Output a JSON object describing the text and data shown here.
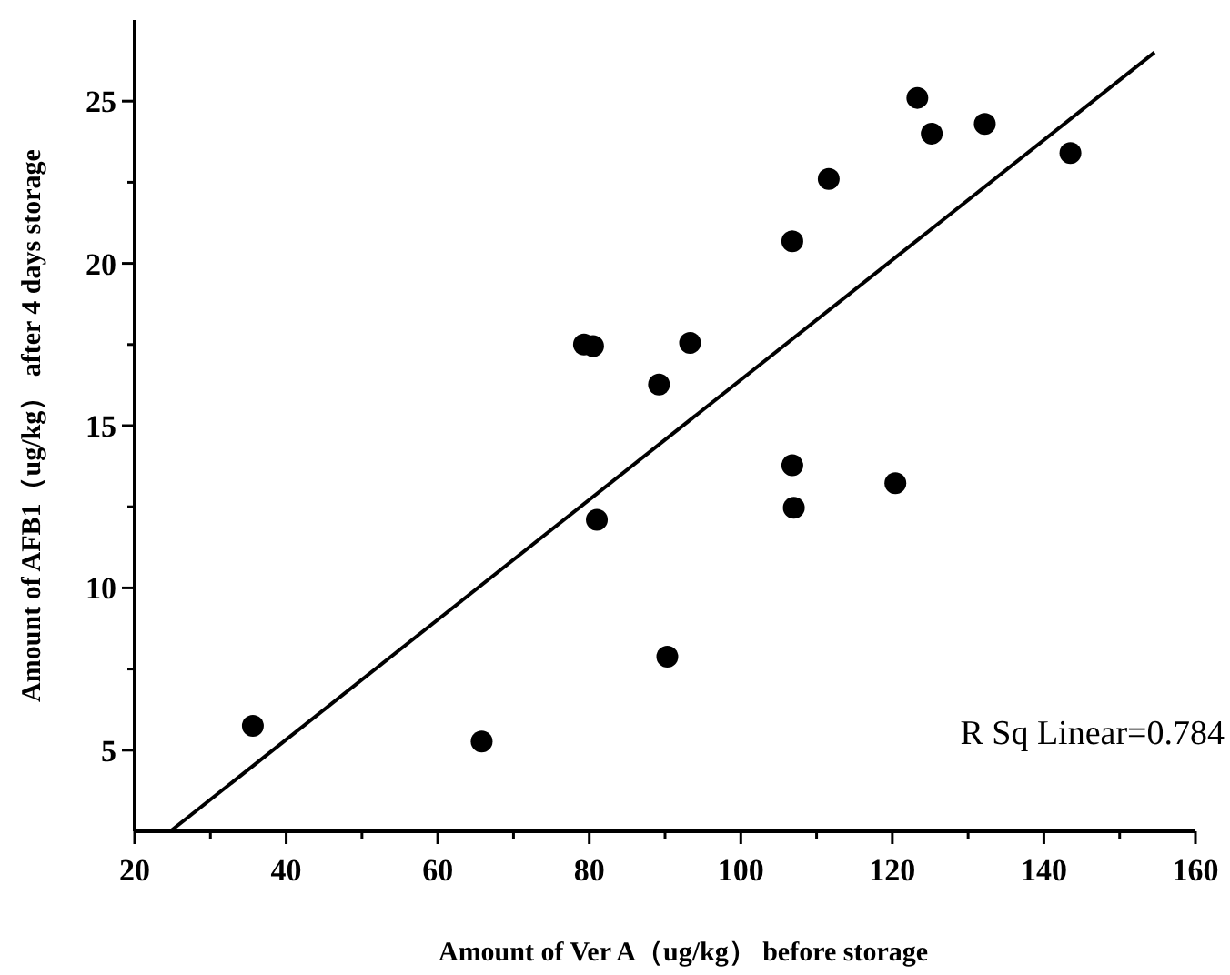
{
  "chart_data": {
    "type": "scatter",
    "xlabel": "Amount of Ver A（ug/kg） before  storage",
    "ylabel": "Amount of AFB1（ug/kg） after 4 days storage",
    "annotations": [
      "R Sq Linear=0.784"
    ],
    "xlim": [
      20,
      160
    ],
    "ylim": [
      2.5,
      27.5
    ],
    "xticks": [
      20,
      {
        "value": 30,
        "label": null
      },
      40,
      {
        "value": 50,
        "label": null
      },
      60,
      {
        "value": 70,
        "label": null
      },
      80,
      {
        "value": 90,
        "label": null
      },
      100,
      {
        "value": 110,
        "label": null
      },
      120,
      {
        "value": 130,
        "label": null
      },
      140,
      {
        "value": 150,
        "label": null
      },
      160
    ],
    "yticks": [
      5,
      {
        "value": 7.5,
        "label": null
      },
      10,
      {
        "value": 12.5,
        "label": null
      },
      15,
      {
        "value": 17.5,
        "label": null
      },
      20,
      {
        "value": 22.5,
        "label": null
      },
      25
    ],
    "grid": false,
    "series": [
      {
        "marker": "circle",
        "color": "#000000",
        "x": [
          35.6,
          65.8,
          79.3,
          80.5,
          81.0,
          89.2,
          93.3,
          90.3,
          106.8,
          111.6,
          106.8,
          107.0,
          120.4,
          123.3,
          125.2,
          132.2,
          143.5
        ],
        "values": [
          5.75,
          5.27,
          17.5,
          17.45,
          12.1,
          16.27,
          17.55,
          7.88,
          20.68,
          22.6,
          13.78,
          12.47,
          13.23,
          25.1,
          24.0,
          24.3,
          23.4
        ]
      },
      {
        "type": "line",
        "marker": "none",
        "line_style": "solid",
        "color": "#000000",
        "x": [
          24.7,
          154.6
        ],
        "values": [
          2.5,
          26.5
        ]
      }
    ]
  }
}
